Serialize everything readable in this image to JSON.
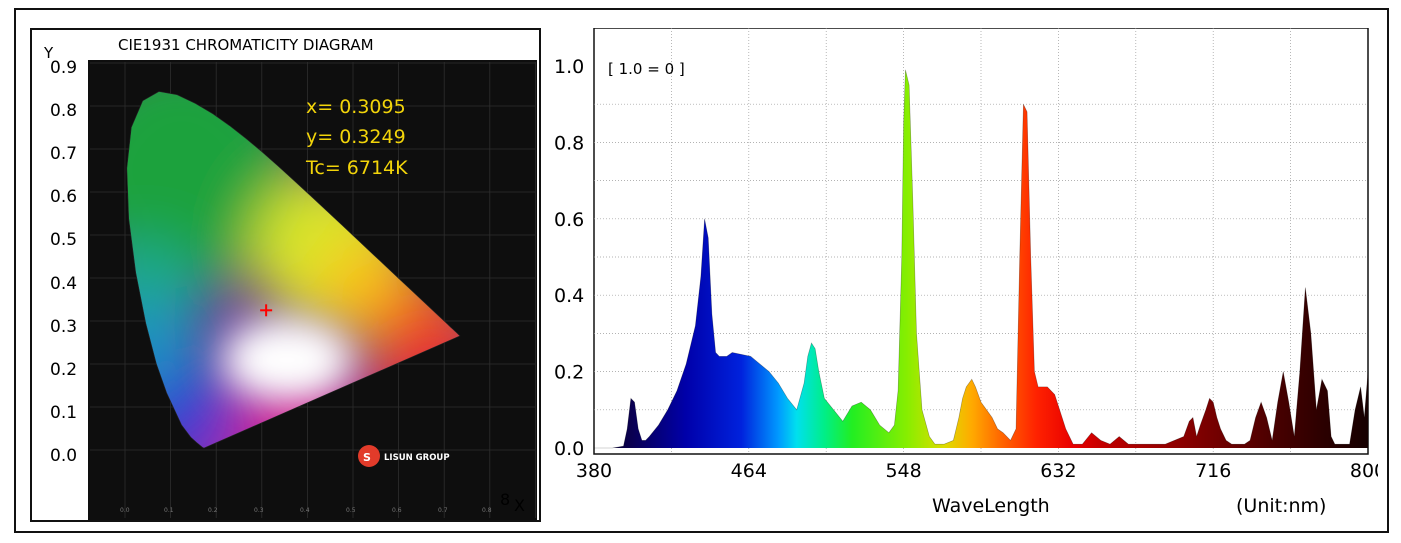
{
  "cie": {
    "title": "CIE1931 CHROMATICITY DIAGRAM",
    "y_axis_label": "Y",
    "x_axis_label": "X",
    "x_edge_tick": "8",
    "y_ticks": [
      "0.9",
      "0.8",
      "0.7",
      "0.6",
      "0.5",
      "0.4",
      "0.3",
      "0.2",
      "0.1",
      "0.0"
    ],
    "x_line": "x= 0.3095",
    "y_line": "y= 0.3249",
    "tc_line": "Tc= 6714K",
    "logo_text": "LISUN GROUP",
    "point": {
      "x": 0.3095,
      "y": 0.3249
    },
    "colors": {
      "readout": "#f2d40a",
      "marker": "#ff0000",
      "plot_bg": "#0e0e0e"
    }
  },
  "chart_data": {
    "type": "area",
    "title": "",
    "annotation": "[ 1.0 = 0 ]",
    "xlabel": "WaveLength",
    "unit_label": "(Unit:nm)",
    "xlim": [
      380,
      800
    ],
    "ylim": [
      0,
      1.05
    ],
    "x_ticks": [
      "380",
      "464",
      "548",
      "632",
      "716",
      "800"
    ],
    "y_ticks": [
      "0.0",
      "0.2",
      "0.4",
      "0.6",
      "0.8",
      "1.0"
    ],
    "grid": true,
    "x": [
      380,
      390,
      396,
      398,
      400,
      402,
      404,
      406,
      408,
      410,
      415,
      420,
      425,
      430,
      435,
      438,
      440,
      442,
      444,
      446,
      448,
      452,
      455,
      460,
      465,
      470,
      475,
      480,
      485,
      490,
      494,
      496,
      498,
      500,
      502,
      505,
      510,
      515,
      520,
      525,
      530,
      535,
      540,
      543,
      545,
      547,
      548,
      549,
      551,
      553,
      555,
      558,
      562,
      565,
      570,
      575,
      578,
      580,
      582,
      585,
      587,
      590,
      593,
      596,
      599,
      602,
      606,
      609,
      611,
      613,
      615,
      617,
      619,
      621,
      623,
      626,
      630,
      636,
      640,
      645,
      650,
      655,
      660,
      665,
      670,
      680,
      690,
      700,
      703,
      705,
      707,
      709,
      712,
      714,
      716,
      718,
      720,
      723,
      726,
      730,
      733,
      736,
      739,
      742,
      745,
      748,
      751,
      754,
      757,
      760,
      763,
      766,
      769,
      772,
      775,
      778,
      780,
      782,
      785,
      788,
      790,
      793,
      796,
      798,
      800
    ],
    "values": [
      0,
      0,
      0.005,
      0.05,
      0.13,
      0.12,
      0.05,
      0.02,
      0.02,
      0.03,
      0.06,
      0.1,
      0.15,
      0.22,
      0.32,
      0.45,
      0.6,
      0.55,
      0.35,
      0.25,
      0.24,
      0.24,
      0.25,
      0.245,
      0.24,
      0.22,
      0.2,
      0.17,
      0.13,
      0.1,
      0.17,
      0.24,
      0.275,
      0.26,
      0.2,
      0.13,
      0.1,
      0.07,
      0.11,
      0.12,
      0.1,
      0.06,
      0.04,
      0.06,
      0.15,
      0.5,
      0.85,
      0.99,
      0.95,
      0.65,
      0.3,
      0.1,
      0.03,
      0.01,
      0.01,
      0.02,
      0.08,
      0.13,
      0.16,
      0.18,
      0.16,
      0.12,
      0.1,
      0.08,
      0.05,
      0.04,
      0.02,
      0.05,
      0.5,
      0.9,
      0.88,
      0.5,
      0.2,
      0.16,
      0.16,
      0.16,
      0.14,
      0.05,
      0.01,
      0.01,
      0.04,
      0.02,
      0.01,
      0.03,
      0.01,
      0.01,
      0.01,
      0.03,
      0.07,
      0.08,
      0.03,
      0.06,
      0.1,
      0.13,
      0.12,
      0.08,
      0.05,
      0.02,
      0.01,
      0.01,
      0.01,
      0.02,
      0.08,
      0.12,
      0.08,
      0.02,
      0.12,
      0.2,
      0.12,
      0.03,
      0.2,
      0.42,
      0.3,
      0.1,
      0.18,
      0.15,
      0.03,
      0.01,
      0.01,
      0.01,
      0.01,
      0.1,
      0.16,
      0.08,
      0.2
    ]
  }
}
